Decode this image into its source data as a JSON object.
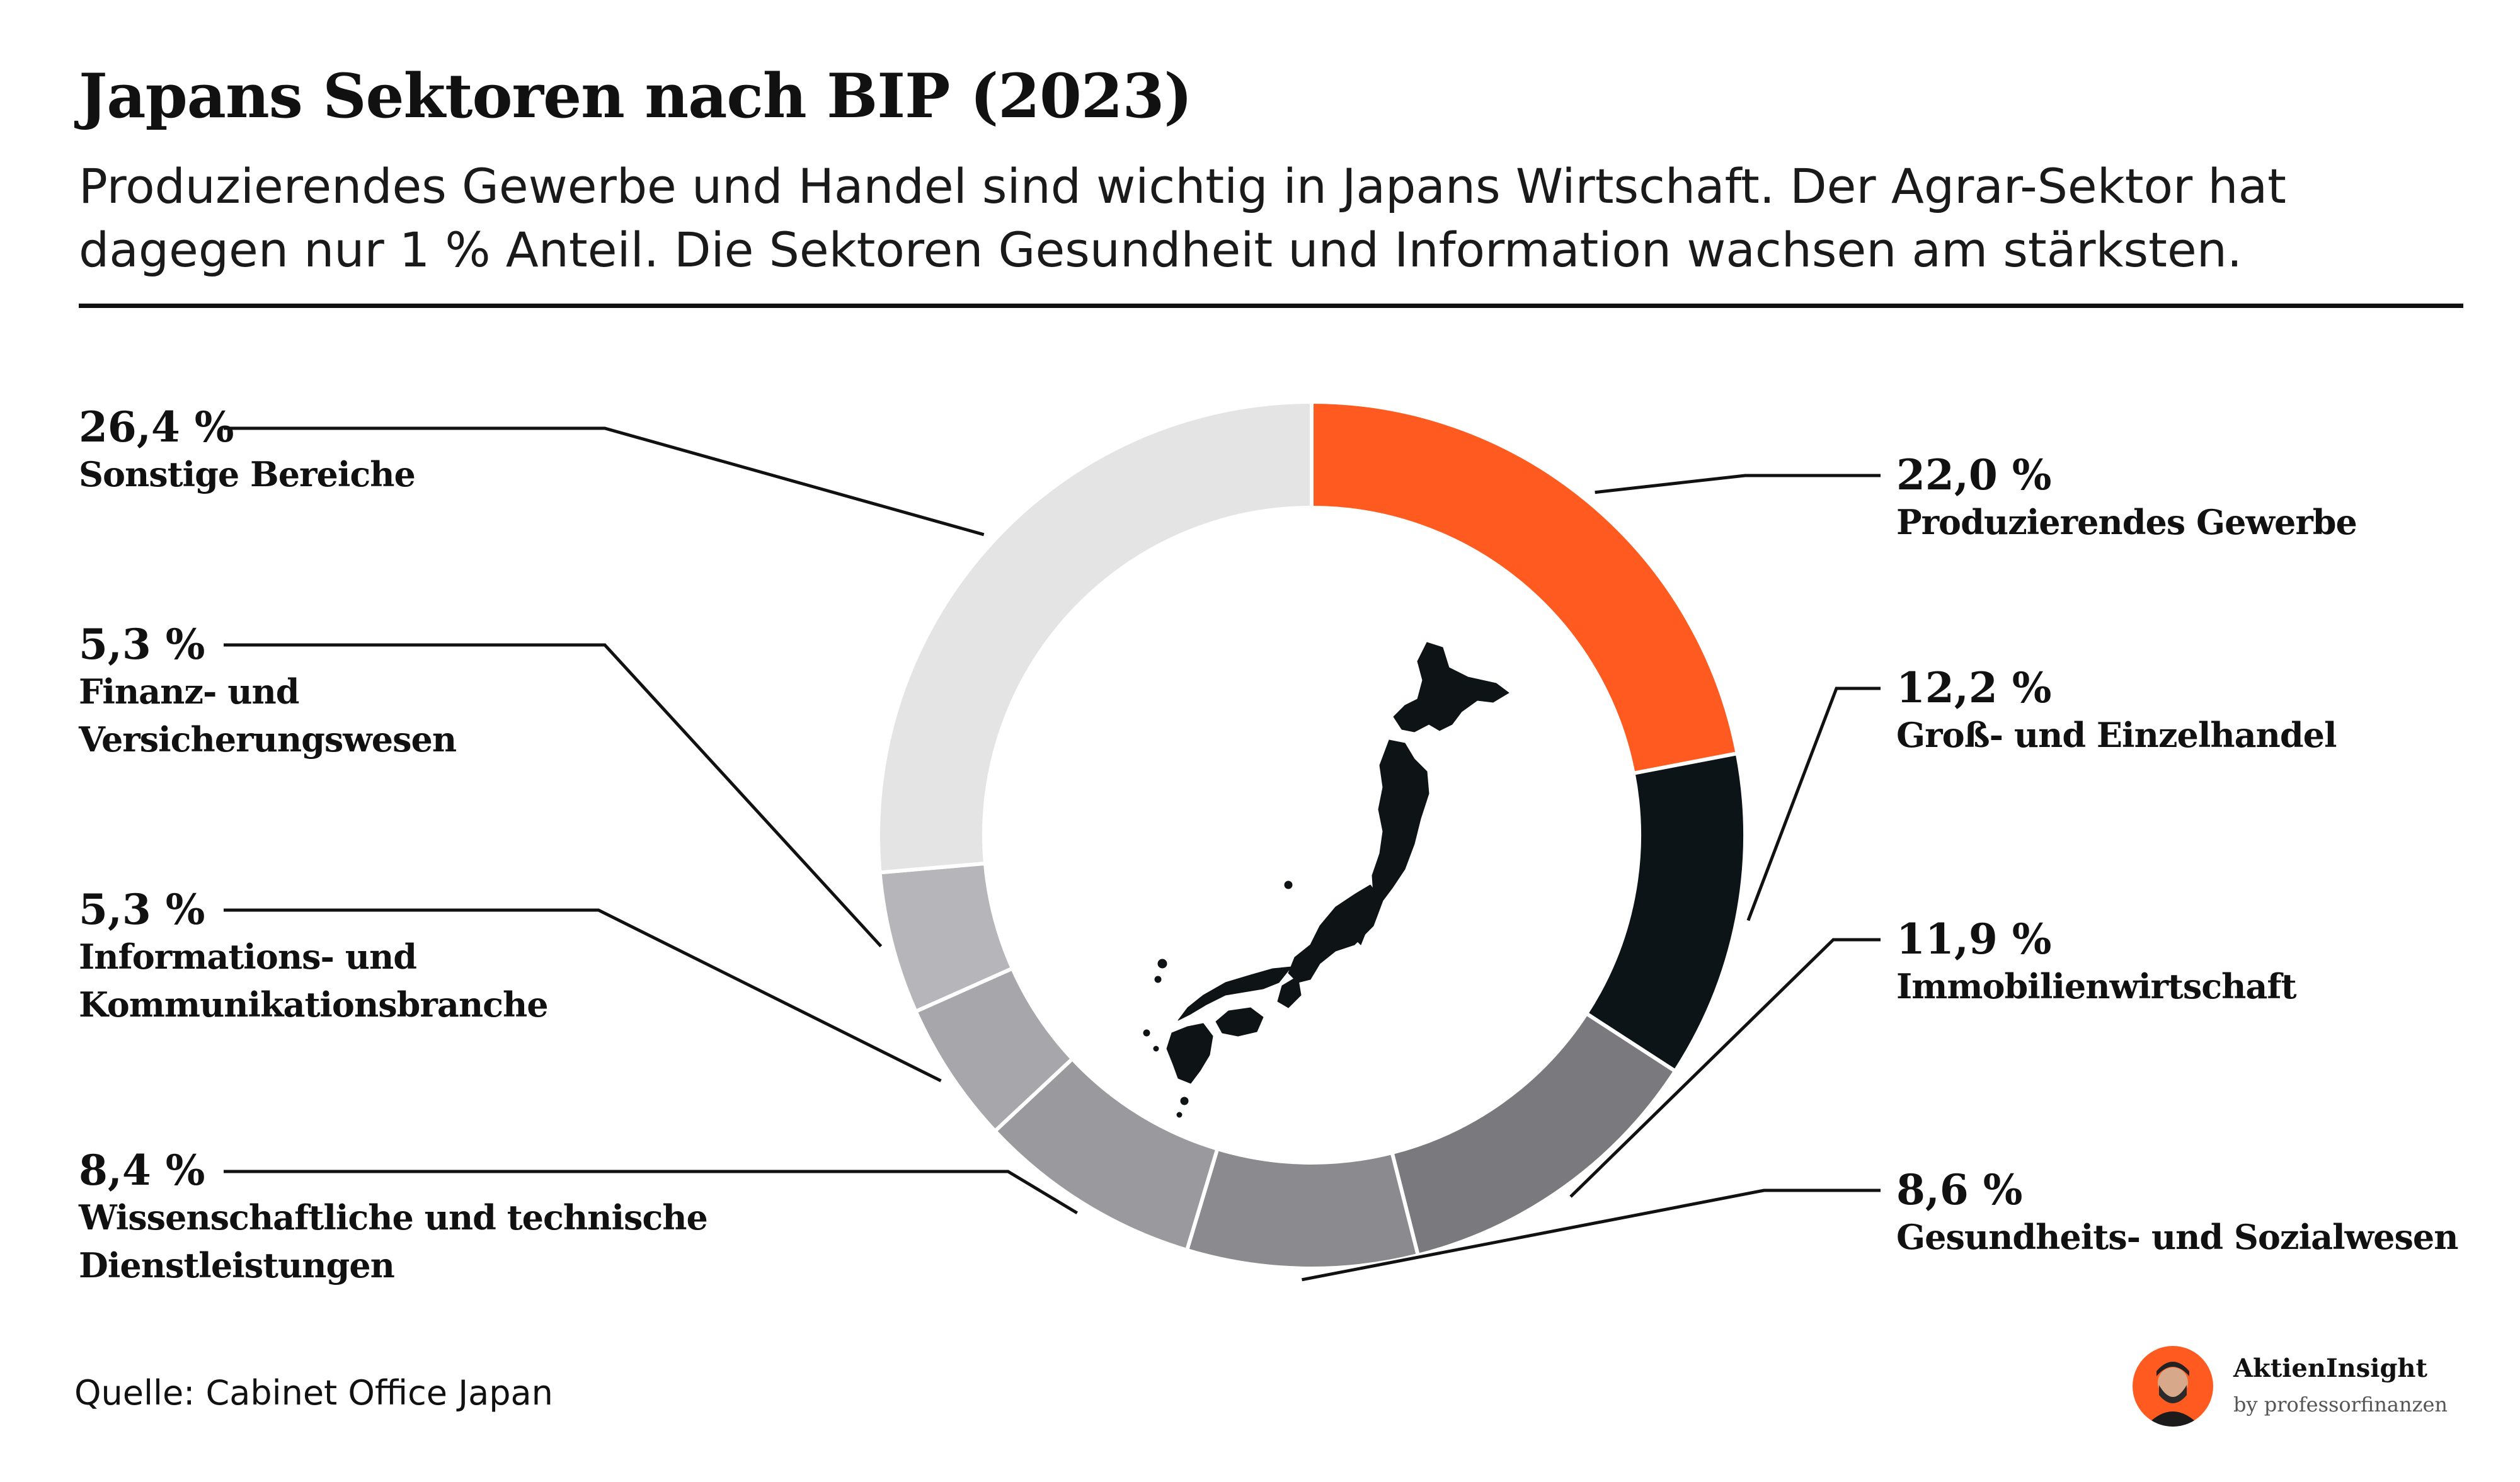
{
  "title": "Japans Sektoren nach BIP (2023)",
  "subtitle": "Produzierendes Gewerbe und Handel sind wichtig in Japans Wirtschaft. Der Agrar-Sektor hat dagegen nur 1 % Anteil. Die Sektoren Gesundheit und Information wachsen am stärksten.",
  "source": "Quelle: Cabinet Office Japan",
  "brand": {
    "name": "AktienInsight",
    "by": "by professorfinanzen"
  },
  "chart_data": {
    "type": "pie",
    "variant": "donut",
    "unit": "%",
    "center_image": "japan-map-icon",
    "categories": [
      "Produzierendes Gewerbe",
      "Groß- und Einzelhandel",
      "Immobilienwirtschaft",
      "Gesundheits- und Sozialwesen",
      "Wissenschaftliche und technische Dienstleistungen",
      "Informations- und Kommunikationsbranche",
      "Finanz- und Versicherungswesen",
      "Sonstige Bereiche"
    ],
    "values": [
      22.0,
      12.2,
      11.9,
      8.6,
      8.4,
      5.3,
      5.3,
      26.4
    ],
    "value_labels": [
      "22,0 %",
      "12,2 %",
      "11,9 %",
      "8,6 %",
      "8,4 %",
      "5,3 %",
      "5,3 %",
      "26,4 %"
    ],
    "label_lines": [
      [
        "Produzierendes Gewerbe"
      ],
      [
        "Groß- und Einzelhandel"
      ],
      [
        "Immobilienwirtschaft"
      ],
      [
        "Gesundheits- und Sozialwesen"
      ],
      [
        "Wissenschaftliche und technische",
        "Dienstleistungen"
      ],
      [
        "Informations- und",
        "Kommunikationsbranche"
      ],
      [
        "Finanz- und",
        "Versicherungswesen"
      ],
      [
        "Sonstige Bereiche"
      ]
    ],
    "colors": [
      "#ff5a1f",
      "#0c1418",
      "#7a7a7e",
      "#8b8b8f",
      "#9a9a9e",
      "#a7a7ab",
      "#b6b6ba",
      "#e4e4e4"
    ]
  }
}
